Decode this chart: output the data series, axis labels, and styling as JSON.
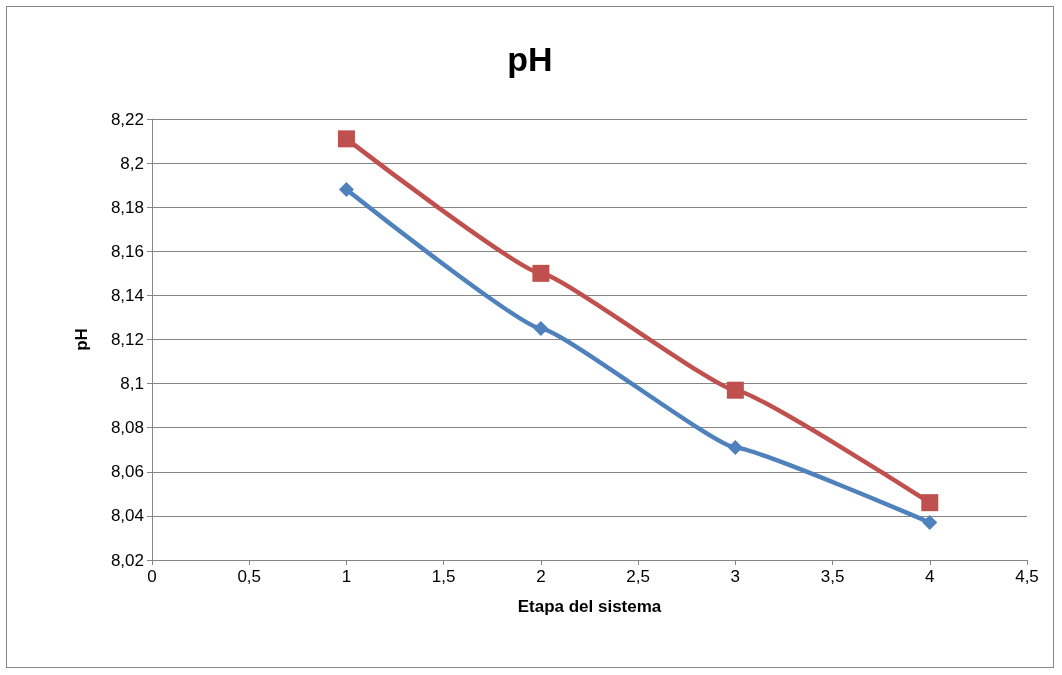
{
  "chart_data": {
    "type": "line",
    "title": "pH",
    "xlabel": "Etapa del sistema",
    "ylabel": "pH",
    "x": [
      1,
      2,
      3,
      4
    ],
    "series": [
      {
        "color": "#4f81bd",
        "marker": "diamond",
        "values": [
          8.188,
          8.125,
          8.071,
          8.037
        ]
      },
      {
        "color": "#c0504d",
        "marker": "square",
        "values": [
          8.211,
          8.15,
          8.097,
          8.046
        ]
      }
    ],
    "xlim": [
      0,
      4.5
    ],
    "xticks": [
      0,
      {
        "value": 0.5,
        "label": "0,5"
      },
      1,
      {
        "value": 1.5,
        "label": "1,5"
      },
      2,
      {
        "value": 2.5,
        "label": "2,5"
      },
      3,
      {
        "value": 3.5,
        "label": "3,5"
      },
      4,
      {
        "value": 4.5,
        "label": "4,5"
      }
    ],
    "ylim": [
      8.02,
      8.22
    ],
    "yticks": [
      {
        "value": 8.02,
        "label": "8,02"
      },
      {
        "value": 8.04,
        "label": "8,04"
      },
      {
        "value": 8.06,
        "label": "8,06"
      },
      {
        "value": 8.08,
        "label": "8,08"
      },
      {
        "value": 8.1,
        "label": "8,1"
      },
      {
        "value": 8.12,
        "label": "8,12"
      },
      {
        "value": 8.14,
        "label": "8,14"
      },
      {
        "value": 8.16,
        "label": "8,16"
      },
      {
        "value": 8.18,
        "label": "8,18"
      },
      {
        "value": 8.2,
        "label": "8,2"
      },
      {
        "value": 8.22,
        "label": "8,22"
      }
    ],
    "grid": "y",
    "line_style": "solid"
  }
}
